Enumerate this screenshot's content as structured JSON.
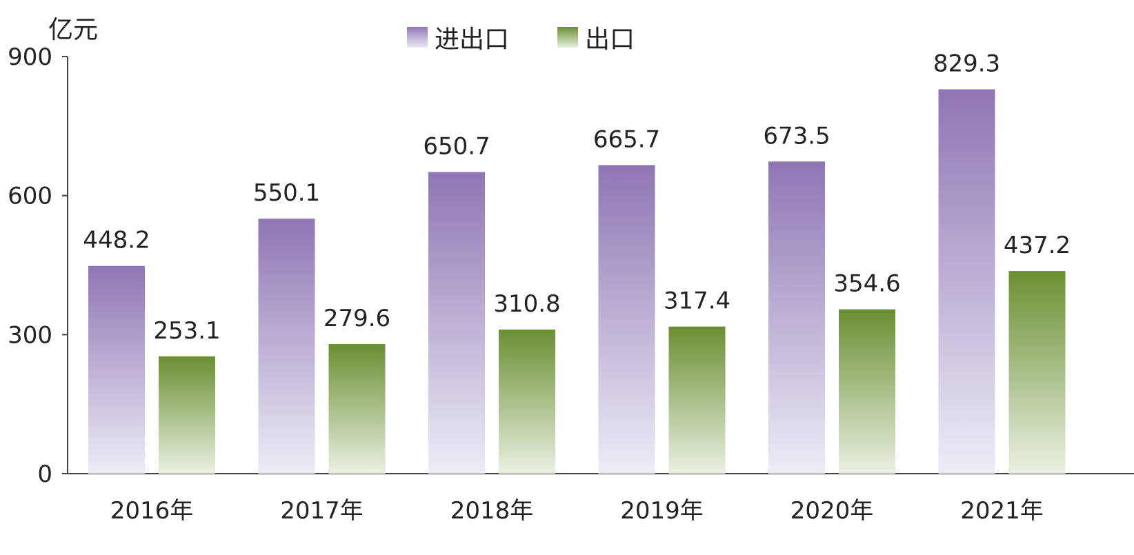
{
  "chart_data": {
    "type": "bar",
    "ylabel": "亿元",
    "ylim": [
      0,
      900
    ],
    "yticks": [
      0,
      300,
      600,
      900
    ],
    "categories": [
      "2016年",
      "2017年",
      "2018年",
      "2019年",
      "2020年",
      "2021年"
    ],
    "series": [
      {
        "name": "进出口",
        "values": [
          448.2,
          550.1,
          650.7,
          665.7,
          673.5,
          829.3
        ],
        "labels": [
          "448.2",
          "550.1",
          "650.7",
          "665.7",
          "673.5",
          "829.3"
        ],
        "color_top": "#8e76b4",
        "color_bottom": "#eeecf6"
      },
      {
        "name": "出口",
        "values": [
          253.1,
          279.6,
          310.8,
          317.4,
          354.6,
          437.2
        ],
        "labels": [
          "253.1",
          "279.6",
          "310.8",
          "317.4",
          "354.6",
          "437.2"
        ],
        "color_top": "#6a8f32",
        "color_bottom": "#eaf0e2"
      }
    ],
    "legend_position": "top-center",
    "grid": false
  }
}
